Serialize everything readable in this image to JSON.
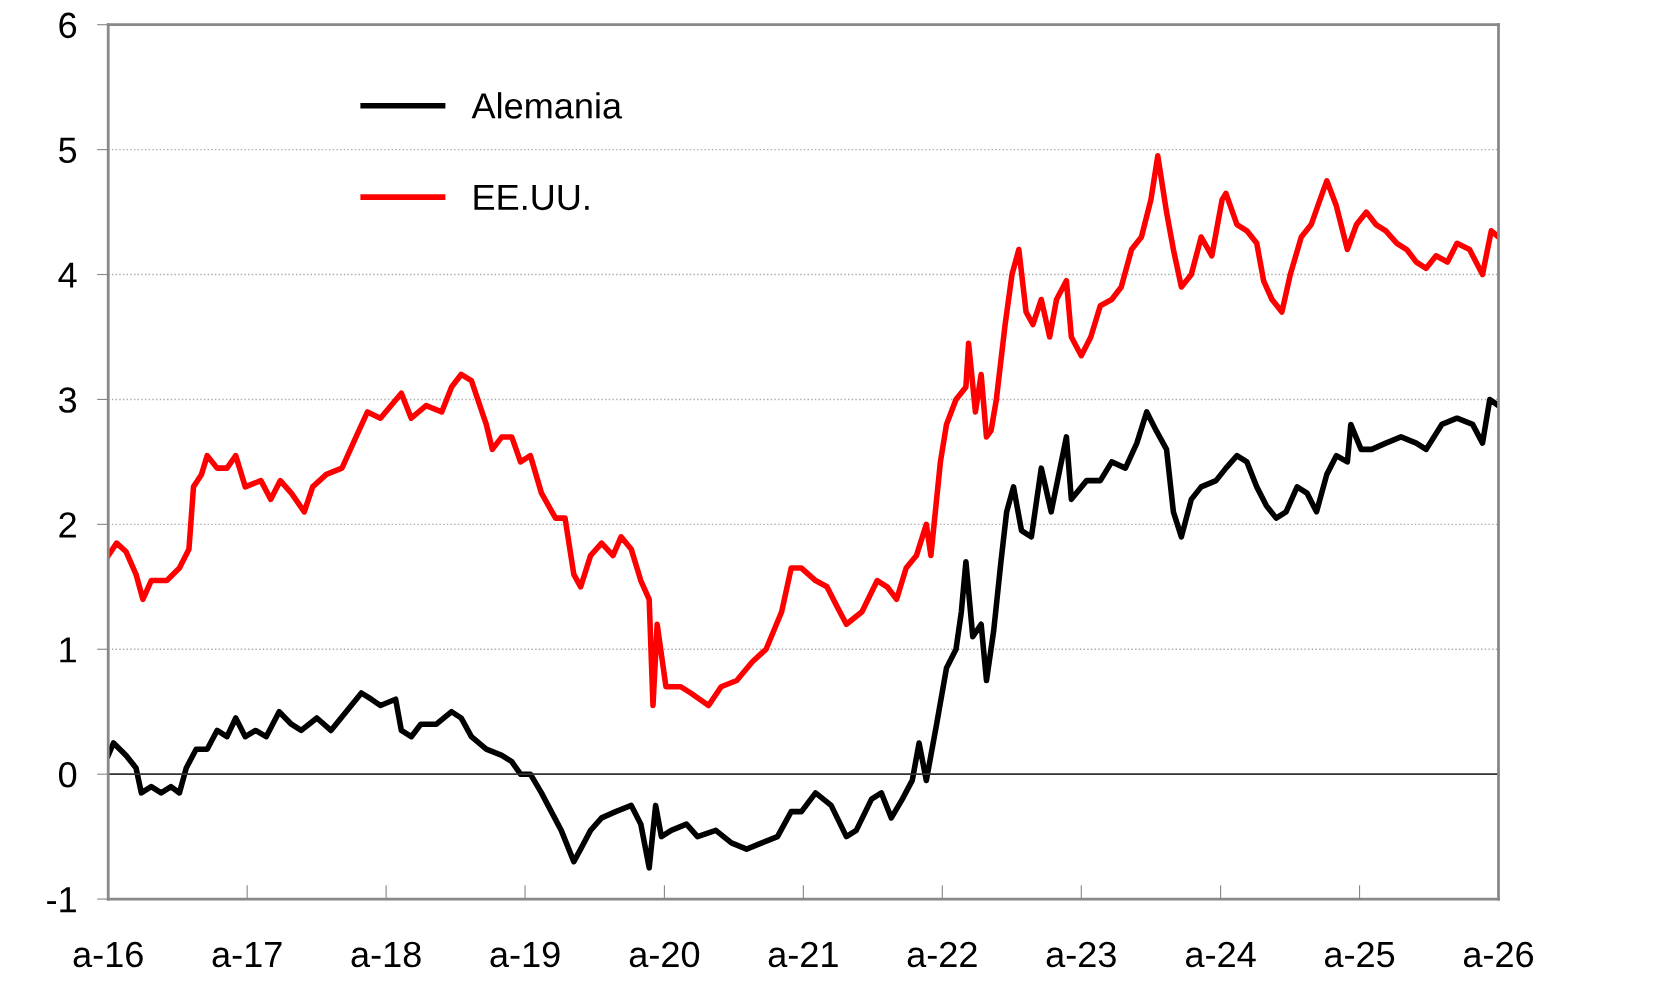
{
  "chart_data": {
    "type": "line",
    "xlim": [
      "2016-04-01",
      "2026-04-01"
    ],
    "ylim": [
      -1,
      6
    ],
    "yticks": [
      -1,
      0,
      1,
      2,
      3,
      4,
      5,
      6
    ],
    "xticks": [
      {
        "value": "2016-04-01",
        "label": "a-16"
      },
      {
        "value": "2017-04-01",
        "label": "a-17"
      },
      {
        "value": "2018-04-01",
        "label": "a-18"
      },
      {
        "value": "2019-04-01",
        "label": "a-19"
      },
      {
        "value": "2020-04-01",
        "label": "a-20"
      },
      {
        "value": "2021-04-01",
        "label": "a-21"
      },
      {
        "value": "2022-04-01",
        "label": "a-22"
      },
      {
        "value": "2023-04-01",
        "label": "a-23"
      },
      {
        "value": "2024-04-01",
        "label": "a-24"
      },
      {
        "value": "2025-04-01",
        "label": "a-25"
      },
      {
        "value": "2026-04-01",
        "label": "a-26"
      }
    ],
    "ref_lines": [
      {
        "axis": "y",
        "value": 0,
        "color": "#333333",
        "line_style": "solid"
      }
    ],
    "grid": "y",
    "legend": "top left",
    "marker": "none",
    "line_style": "solid",
    "series": [
      {
        "name": "Alemania",
        "color": "#000000",
        "x": [
          "2016-04-01",
          "2016-04-15",
          "2016-05-18",
          "2016-06-13",
          "2016-06-27",
          "2016-07-23",
          "2016-08-18",
          "2016-09-13",
          "2016-10-05",
          "2016-10-23",
          "2016-11-18",
          "2016-12-17",
          "2017-01-12",
          "2017-02-07",
          "2017-03-02",
          "2017-03-27",
          "2017-04-23",
          "2017-05-21",
          "2017-06-24",
          "2017-07-26",
          "2017-08-21",
          "2017-10-01",
          "2017-11-07",
          "2017-12-17",
          "2018-01-26",
          "2018-02-21",
          "2018-03-17",
          "2018-04-26",
          "2018-05-11",
          "2018-06-06",
          "2018-07-01",
          "2018-08-11",
          "2018-09-20",
          "2018-10-15",
          "2018-11-11",
          "2018-12-20",
          "2019-01-30",
          "2019-02-25",
          "2019-03-20",
          "2019-04-15",
          "2019-05-14",
          "2019-06-09",
          "2019-07-05",
          "2019-08-07",
          "2019-08-25",
          "2019-09-20",
          "2019-10-19",
          "2019-11-25",
          "2020-01-05",
          "2020-01-30",
          "2020-02-21",
          "2020-03-09",
          "2020-03-24",
          "2020-04-19",
          "2020-05-29",
          "2020-06-27",
          "2020-08-14",
          "2020-09-24",
          "2020-11-03",
          "2020-12-13",
          "2021-01-23",
          "2021-02-28",
          "2021-03-27",
          "2021-05-03",
          "2021-06-13",
          "2021-07-23",
          "2021-08-18",
          "2021-09-27",
          "2021-10-23",
          "2021-11-18",
          "2021-12-17",
          "2022-01-12",
          "2022-01-30",
          "2022-02-18",
          "2022-03-17",
          "2022-04-12",
          "2022-05-07",
          "2022-05-21",
          "2022-06-02",
          "2022-06-20",
          "2022-07-12",
          "2022-07-26",
          "2022-08-14",
          "2022-09-02",
          "2022-09-17",
          "2022-10-05",
          "2022-10-26",
          "2022-11-21",
          "2022-12-17",
          "2023-01-12",
          "2023-02-21",
          "2023-03-06",
          "2023-04-15",
          "2023-05-21",
          "2023-06-20",
          "2023-07-26",
          "2023-08-25",
          "2023-09-20",
          "2023-10-15",
          "2023-11-11",
          "2023-11-29",
          "2023-12-20",
          "2024-01-15",
          "2024-02-10",
          "2024-03-20",
          "2024-04-15",
          "2024-05-14",
          "2024-06-09",
          "2024-07-05",
          "2024-07-30",
          "2024-08-25",
          "2024-09-20",
          "2024-10-19",
          "2024-11-14",
          "2024-12-09",
          "2025-01-05",
          "2025-01-30",
          "2025-02-28",
          "2025-03-09",
          "2025-04-05",
          "2025-05-03",
          "2025-06-09",
          "2025-07-19",
          "2025-08-28",
          "2025-09-23",
          "2025-11-03",
          "2025-12-13",
          "2026-01-23",
          "2026-02-18",
          "2026-03-09",
          "2026-04-01"
        ],
        "values": [
          0.15,
          0.25,
          0.15,
          0.05,
          -0.15,
          -0.1,
          -0.15,
          -0.1,
          -0.15,
          0.05,
          0.2,
          0.2,
          0.35,
          0.3,
          0.45,
          0.3,
          0.35,
          0.3,
          0.5,
          0.4,
          0.35,
          0.45,
          0.35,
          0.5,
          0.65,
          0.6,
          0.55,
          0.6,
          0.35,
          0.3,
          0.4,
          0.4,
          0.5,
          0.45,
          0.3,
          0.2,
          0.15,
          0.1,
          0.0,
          0.0,
          -0.15,
          -0.3,
          -0.45,
          -0.7,
          -0.6,
          -0.45,
          -0.35,
          -0.3,
          -0.25,
          -0.4,
          -0.75,
          -0.25,
          -0.5,
          -0.45,
          -0.4,
          -0.5,
          -0.45,
          -0.55,
          -0.6,
          -0.55,
          -0.5,
          -0.3,
          -0.3,
          -0.15,
          -0.25,
          -0.5,
          -0.45,
          -0.2,
          -0.15,
          -0.35,
          -0.2,
          -0.05,
          0.25,
          -0.05,
          0.4,
          0.85,
          1.0,
          1.3,
          1.7,
          1.1,
          1.2,
          0.75,
          1.15,
          1.7,
          2.1,
          2.3,
          1.95,
          1.9,
          2.45,
          2.1,
          2.7,
          2.2,
          2.35,
          2.35,
          2.5,
          2.45,
          2.65,
          2.9,
          2.75,
          2.6,
          2.1,
          1.9,
          2.2,
          2.3,
          2.35,
          2.45,
          2.55,
          2.5,
          2.3,
          2.15,
          2.05,
          2.1,
          2.3,
          2.25,
          2.1,
          2.4,
          2.55,
          2.5,
          2.8,
          2.6,
          2.6,
          2.65,
          2.7,
          2.65,
          2.6,
          2.8,
          2.85,
          2.8,
          2.65,
          3.0,
          2.95
        ]
      },
      {
        "name": "EE.UU.",
        "color": "#ff0000",
        "x": [
          "2016-04-01",
          "2016-04-23",
          "2016-05-18",
          "2016-06-13",
          "2016-07-01",
          "2016-07-23",
          "2016-09-02",
          "2016-10-05",
          "2016-10-30",
          "2016-11-11",
          "2016-12-02",
          "2016-12-17",
          "2017-01-12",
          "2017-02-07",
          "2017-03-02",
          "2017-03-27",
          "2017-05-07",
          "2017-06-02",
          "2017-06-27",
          "2017-07-26",
          "2017-08-29",
          "2017-09-20",
          "2017-10-26",
          "2017-12-06",
          "2018-01-12",
          "2018-02-11",
          "2018-03-17",
          "2018-05-11",
          "2018-06-06",
          "2018-07-15",
          "2018-08-25",
          "2018-09-20",
          "2018-10-15",
          "2018-11-11",
          "2018-12-20",
          "2019-01-05",
          "2019-01-30",
          "2019-02-25",
          "2019-03-20",
          "2019-04-15",
          "2019-05-14",
          "2019-06-20",
          "2019-07-15",
          "2019-08-07",
          "2019-08-25",
          "2019-09-20",
          "2019-10-19",
          "2019-11-18",
          "2019-12-09",
          "2020-01-05",
          "2020-01-30",
          "2020-02-21",
          "2020-03-02",
          "2020-03-13",
          "2020-04-05",
          "2020-05-14",
          "2020-06-09",
          "2020-07-26",
          "2020-08-28",
          "2020-10-08",
          "2020-11-18",
          "2020-12-24",
          "2021-02-03",
          "2021-02-28",
          "2021-03-27",
          "2021-05-03",
          "2021-06-02",
          "2021-06-27",
          "2021-07-23",
          "2021-09-02",
          "2021-10-12",
          "2021-11-07",
          "2021-12-02",
          "2021-12-27",
          "2022-01-23",
          "2022-02-18",
          "2022-03-02",
          "2022-03-27",
          "2022-04-12",
          "2022-05-07",
          "2022-06-02",
          "2022-06-09",
          "2022-06-27",
          "2022-07-12",
          "2022-07-26",
          "2022-08-07",
          "2022-08-21",
          "2022-09-13",
          "2022-10-01",
          "2022-10-19",
          "2022-11-07",
          "2022-11-25",
          "2022-12-17",
          "2023-01-08",
          "2023-01-26",
          "2023-02-21",
          "2023-03-06",
          "2023-04-01",
          "2023-04-26",
          "2023-05-21",
          "2023-06-20",
          "2023-07-15",
          "2023-08-11",
          "2023-09-06",
          "2023-10-01",
          "2023-10-19",
          "2023-11-11",
          "2023-11-29",
          "2023-12-20",
          "2024-01-15",
          "2024-02-10",
          "2024-03-09",
          "2024-04-05",
          "2024-04-15",
          "2024-05-14",
          "2024-06-09",
          "2024-07-05",
          "2024-07-23",
          "2024-08-14",
          "2024-09-09",
          "2024-10-01",
          "2024-10-30",
          "2024-11-25",
          "2024-12-24",
          "2025-01-05",
          "2025-01-30",
          "2025-02-28",
          "2025-03-24",
          "2025-04-19",
          "2025-05-14",
          "2025-06-09",
          "2025-07-08",
          "2025-08-03",
          "2025-08-28",
          "2025-09-23",
          "2025-10-19",
          "2025-11-18",
          "2025-12-13",
          "2026-01-15",
          "2026-02-18",
          "2026-03-13",
          "2026-04-01"
        ],
        "values": [
          1.75,
          1.85,
          1.78,
          1.6,
          1.4,
          1.55,
          1.55,
          1.65,
          1.8,
          2.3,
          2.4,
          2.55,
          2.45,
          2.45,
          2.55,
          2.3,
          2.35,
          2.2,
          2.35,
          2.25,
          2.1,
          2.3,
          2.4,
          2.45,
          2.7,
          2.9,
          2.85,
          3.05,
          2.85,
          2.95,
          2.9,
          3.1,
          3.2,
          3.15,
          2.8,
          2.6,
          2.7,
          2.7,
          2.5,
          2.55,
          2.25,
          2.05,
          2.05,
          1.6,
          1.5,
          1.75,
          1.85,
          1.75,
          1.9,
          1.8,
          1.55,
          1.4,
          0.55,
          1.2,
          0.7,
          0.7,
          0.65,
          0.55,
          0.7,
          0.75,
          0.9,
          1.0,
          1.3,
          1.65,
          1.65,
          1.55,
          1.5,
          1.35,
          1.2,
          1.3,
          1.55,
          1.5,
          1.4,
          1.65,
          1.75,
          2.0,
          1.75,
          2.5,
          2.8,
          3.0,
          3.1,
          3.45,
          2.9,
          3.2,
          2.7,
          2.75,
          3.0,
          3.6,
          4.0,
          4.2,
          3.7,
          3.6,
          3.8,
          3.5,
          3.8,
          3.95,
          3.5,
          3.35,
          3.5,
          3.75,
          3.8,
          3.9,
          4.2,
          4.3,
          4.6,
          4.95,
          4.5,
          4.2,
          3.9,
          4.0,
          4.3,
          4.15,
          4.6,
          4.65,
          4.4,
          4.35,
          4.25,
          3.95,
          3.8,
          3.7,
          4.0,
          4.3,
          4.4,
          4.65,
          4.75,
          4.55,
          4.2,
          4.4,
          4.5,
          4.4,
          4.35,
          4.25,
          4.2,
          4.1,
          4.05,
          4.15,
          4.1,
          4.25,
          4.2,
          4.0,
          4.35,
          4.3
        ]
      }
    ]
  }
}
